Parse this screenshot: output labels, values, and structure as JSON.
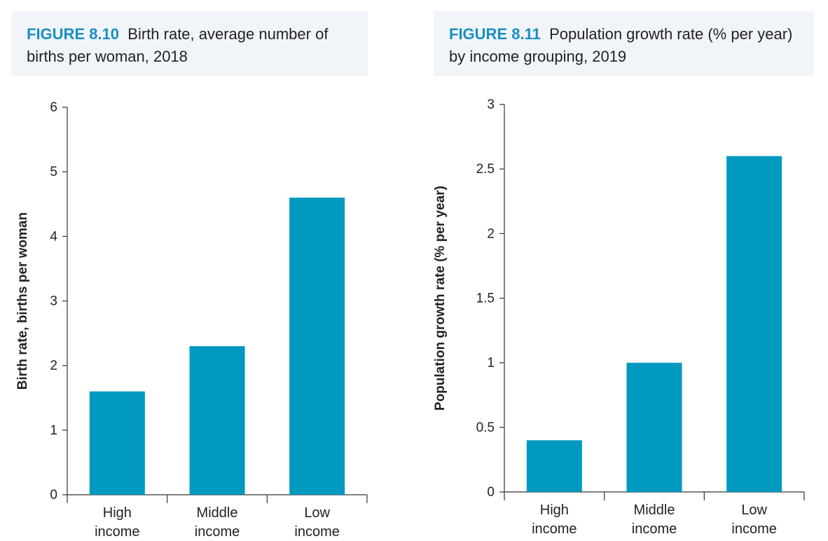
{
  "figures": [
    {
      "label": "FIGURE 8.10",
      "title": "Birth rate, average number of births per woman, 2018"
    },
    {
      "label": "FIGURE 8.11",
      "title": "Population growth rate (% per year) by income grouping, 2019"
    }
  ],
  "chart_data": [
    {
      "type": "bar",
      "title": "Birth rate, average number of births per woman, 2018",
      "categories": [
        [
          "High",
          "income"
        ],
        [
          "Middle",
          "income"
        ],
        [
          "Low",
          "income"
        ]
      ],
      "values": [
        1.6,
        2.3,
        4.6
      ],
      "xlabel": "",
      "ylabel": "Birth rate, births per woman",
      "ylim": [
        0,
        6
      ],
      "yticks": [
        "0",
        "1",
        "2",
        "3",
        "4",
        "5",
        "6"
      ],
      "bar_color": "#0099bf",
      "grid": false
    },
    {
      "type": "bar",
      "title": "Population growth rate (% per year) by income grouping, 2019",
      "categories": [
        [
          "High",
          "income"
        ],
        [
          "Middle",
          "income"
        ],
        [
          "Low",
          "income"
        ]
      ],
      "values": [
        0.4,
        1.0,
        2.6
      ],
      "xlabel": "",
      "ylabel": "Population growth rate (% per year)",
      "ylim": [
        0,
        3
      ],
      "yticks": [
        "0",
        "0.5",
        "1",
        "1.5",
        "2",
        "2.5",
        "3"
      ],
      "bar_color": "#0099bf",
      "grid": false
    }
  ]
}
